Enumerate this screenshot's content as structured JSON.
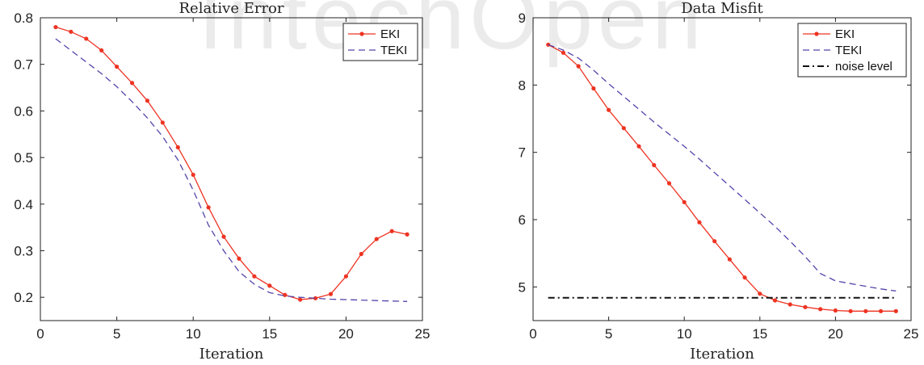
{
  "watermark": "IntechOpen",
  "chart_data": [
    {
      "type": "line",
      "title": "Relative Error",
      "xlabel": "Iteration",
      "ylabel": "",
      "xlim": [
        0,
        25
      ],
      "ylim": [
        0.15,
        0.8
      ],
      "xticks": [
        0,
        5,
        10,
        15,
        20,
        25
      ],
      "yticks": [
        0.2,
        0.3,
        0.4,
        0.5,
        0.6,
        0.7,
        0.8
      ],
      "grid": false,
      "legend_position": "top-right",
      "series": [
        {
          "name": "EKI",
          "style": "solid-markers",
          "color": "#ee3322",
          "x": [
            1,
            2,
            3,
            4,
            5,
            6,
            7,
            8,
            9,
            10,
            11,
            12,
            13,
            14,
            15,
            16,
            17,
            18,
            19,
            20,
            21,
            22,
            23,
            24
          ],
          "y": [
            0.78,
            0.77,
            0.755,
            0.73,
            0.695,
            0.66,
            0.622,
            0.575,
            0.522,
            0.463,
            0.393,
            0.33,
            0.283,
            0.245,
            0.225,
            0.205,
            0.195,
            0.198,
            0.207,
            0.245,
            0.293,
            0.325,
            0.342,
            0.335
          ]
        },
        {
          "name": "TEKI",
          "style": "dashed",
          "color": "#5544aa",
          "x": [
            1,
            2,
            3,
            4,
            5,
            6,
            7,
            8,
            9,
            10,
            11,
            12,
            13,
            14,
            15,
            16,
            17,
            18,
            19,
            20,
            21,
            22,
            23,
            24
          ],
          "y": [
            0.755,
            0.73,
            0.705,
            0.68,
            0.652,
            0.62,
            0.585,
            0.545,
            0.495,
            0.43,
            0.355,
            0.3,
            0.255,
            0.228,
            0.21,
            0.203,
            0.2,
            0.198,
            0.196,
            0.195,
            0.194,
            0.193,
            0.192,
            0.191
          ]
        }
      ]
    },
    {
      "type": "line",
      "title": "Data Misfit",
      "xlabel": "Iteration",
      "ylabel": "",
      "xlim": [
        0,
        25
      ],
      "ylim": [
        4.5,
        9
      ],
      "xticks": [
        0,
        5,
        10,
        15,
        20,
        25
      ],
      "yticks": [
        5,
        6,
        7,
        8,
        9
      ],
      "grid": false,
      "legend_position": "top-right",
      "series": [
        {
          "name": "EKI",
          "style": "solid-markers",
          "color": "#ee3322",
          "x": [
            1,
            2,
            3,
            4,
            5,
            6,
            7,
            8,
            9,
            10,
            11,
            12,
            13,
            14,
            15,
            16,
            17,
            18,
            19,
            20,
            21,
            22,
            23,
            24
          ],
          "y": [
            8.6,
            8.48,
            8.28,
            7.95,
            7.63,
            7.36,
            7.09,
            6.81,
            6.54,
            6.26,
            5.96,
            5.68,
            5.41,
            5.14,
            4.9,
            4.8,
            4.74,
            4.7,
            4.67,
            4.65,
            4.64,
            4.64,
            4.64,
            4.64
          ]
        },
        {
          "name": "TEKI",
          "style": "dashed",
          "color": "#5544aa",
          "x": [
            1,
            2,
            3,
            4,
            5,
            6,
            7,
            8,
            9,
            10,
            11,
            12,
            13,
            14,
            15,
            16,
            17,
            18,
            19,
            20,
            21,
            22,
            23,
            24
          ],
          "y": [
            8.6,
            8.52,
            8.4,
            8.22,
            8.02,
            7.83,
            7.64,
            7.45,
            7.27,
            7.09,
            6.9,
            6.7,
            6.5,
            6.3,
            6.1,
            5.9,
            5.68,
            5.45,
            5.2,
            5.09,
            5.05,
            5.01,
            4.97,
            4.94
          ]
        },
        {
          "name": "noise level",
          "style": "dashdot",
          "color": "#111111",
          "x": [
            1,
            24
          ],
          "y": [
            4.84,
            4.84
          ]
        }
      ]
    }
  ]
}
